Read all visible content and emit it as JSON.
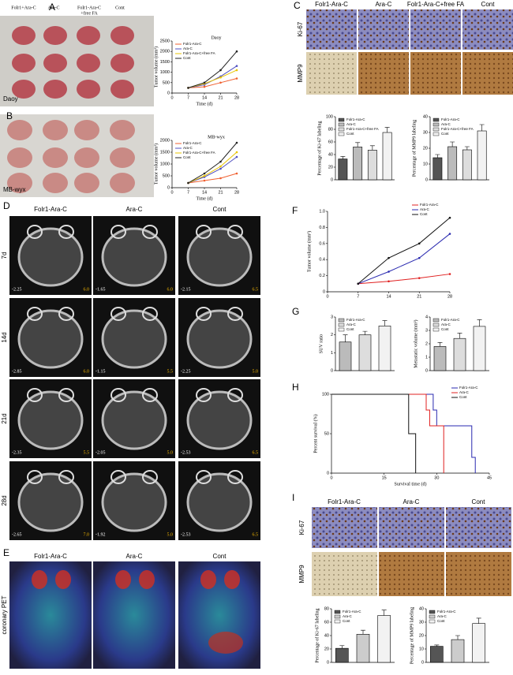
{
  "panel_labels": [
    "A",
    "B",
    "C",
    "D",
    "E",
    "F",
    "G",
    "H",
    "I"
  ],
  "panel_a": {
    "columns": [
      [
        "Folr1+Ara-C"
      ],
      [
        "Ara-C"
      ],
      [
        "Folr1-Ara-C",
        "+free FA"
      ],
      [
        "Cont"
      ]
    ],
    "photo_labels": [
      "Daoy",
      "MB-wyx"
    ]
  },
  "panel_c": {
    "columns": [
      "Folr1-Ara-C",
      "Ara-C",
      "Folr1-Ara-C+free FA",
      "Cont"
    ],
    "rows": [
      "Ki-67",
      "MMP9"
    ]
  },
  "panel_d": {
    "columns": [
      "Folr1-Ara-C",
      "Ara-C",
      "Cont"
    ],
    "rows": [
      {
        "label": "7d",
        "values": [
          [
            "-2.25",
            "6.0"
          ],
          [
            "-1.65",
            "6.0"
          ],
          [
            "-2.15",
            "6.5"
          ]
        ]
      },
      {
        "label": "14d",
        "values": [
          [
            "-2.85",
            "6.0"
          ],
          [
            "-1.15",
            "5.5"
          ],
          [
            "-2.25",
            "5.0"
          ]
        ]
      },
      {
        "label": "21d",
        "values": [
          [
            "-2.35",
            "5.5"
          ],
          [
            "-2.05",
            "5.0"
          ],
          [
            "-2.53",
            "6.5"
          ]
        ]
      },
      {
        "label": "28d",
        "values": [
          [
            "-2.65",
            "7.0"
          ],
          [
            "-1.92",
            "5.0"
          ],
          [
            "-2.53",
            "6.5"
          ]
        ]
      }
    ]
  },
  "panel_e": {
    "columns": [
      "Folr1-Ara-C",
      "Ara-C",
      "Cont"
    ],
    "row_label": "coronary PET"
  },
  "panel_i": {
    "columns": [
      "Folr1-Ara-C",
      "Ara-C",
      "Cont"
    ],
    "rows": [
      "Ki-67",
      "MMP9"
    ]
  },
  "chart_data": [
    {
      "type": "line",
      "title": "Daoy",
      "xlabel": "Time (d)",
      "ylabel": "Tumor volume (mm³)",
      "x": [
        7,
        14,
        21,
        28
      ],
      "xlim": [
        0,
        28
      ],
      "xticks": [
        0,
        7,
        14,
        21,
        28
      ],
      "ylim": [
        0,
        2500
      ],
      "yticks": [
        0,
        500,
        1000,
        1500,
        2000,
        2500
      ],
      "legend": "upper left",
      "series": [
        {
          "name": "Folr1-Ara-C",
          "color": "#f06030",
          "values": [
            250,
            300,
            500,
            700
          ]
        },
        {
          "name": "Ara-C",
          "color": "#5050c0",
          "values": [
            250,
            400,
            800,
            1300
          ]
        },
        {
          "name": "Folr1-Ara-C+free FA",
          "color": "#e8c400",
          "values": [
            250,
            450,
            750,
            1100
          ]
        },
        {
          "name": "Cont",
          "color": "#222222",
          "values": [
            250,
            500,
            1100,
            2000
          ]
        }
      ]
    },
    {
      "type": "line",
      "title": "MB-wyx",
      "xlabel": "Time (d)",
      "ylabel": "Tumor volume (mm³)",
      "x": [
        7,
        14,
        21,
        28
      ],
      "xlim": [
        0,
        28
      ],
      "xticks": [
        0,
        7,
        14,
        21,
        28
      ],
      "ylim": [
        0,
        2000
      ],
      "yticks": [
        0,
        500,
        1000,
        1500,
        2000
      ],
      "legend": "upper left",
      "series": [
        {
          "name": "Folr1-Ara-C",
          "color": "#f06030",
          "values": [
            200,
            300,
            400,
            600
          ]
        },
        {
          "name": "Ara-C",
          "color": "#5050c0",
          "values": [
            200,
            450,
            800,
            1300
          ]
        },
        {
          "name": "Folr1-Ara-C+free FA",
          "color": "#e8c400",
          "values": [
            200,
            500,
            900,
            1500
          ]
        },
        {
          "name": "Cont",
          "color": "#222222",
          "values": [
            200,
            600,
            1100,
            1900
          ]
        }
      ]
    },
    {
      "type": "bar",
      "ylabel": "Percentage of Ki-67 labeling",
      "categories": [
        "Folr1-Ara-C",
        "Ara-C",
        "Folr1-Ara-C+free FA",
        "Cont"
      ],
      "values": [
        33,
        52,
        47,
        75
      ],
      "errors": [
        4,
        7,
        7,
        8
      ],
      "colors": [
        "#555555",
        "#bbbbbb",
        "#dddddd",
        "#f2f2f2"
      ],
      "ylim": [
        0,
        100
      ],
      "yticks": [
        0,
        20,
        40,
        60,
        80,
        100
      ],
      "legend": "upper left"
    },
    {
      "type": "bar",
      "ylabel": "Percentage of MMP9 labeling",
      "categories": [
        "Folr1-Ara-C",
        "Ara-C",
        "Folr1-Ara-C+free FA",
        "Cont"
      ],
      "values": [
        14,
        21,
        19,
        31
      ],
      "errors": [
        2,
        3,
        2,
        4
      ],
      "colors": [
        "#555555",
        "#bbbbbb",
        "#dddddd",
        "#f2f2f2"
      ],
      "ylim": [
        0,
        40
      ],
      "yticks": [
        0,
        10,
        20,
        30,
        40
      ],
      "legend": "upper left"
    },
    {
      "type": "line",
      "ylabel": "Tumor volume (mm³)",
      "x": [
        7,
        14,
        21,
        28
      ],
      "xlim": [
        0,
        28
      ],
      "xticks": [
        0,
        7,
        14,
        21,
        28
      ],
      "ylim": [
        0,
        1
      ],
      "yticks": [
        0,
        0.2,
        0.4,
        0.6,
        0.8,
        {
          "value": 1,
          "label": "1.0"
        }
      ],
      "legend": "upper right",
      "series": [
        {
          "name": "Folr1-Ara-C",
          "color": "#e02020",
          "values": [
            0.1,
            0.13,
            0.17,
            0.22
          ]
        },
        {
          "name": "Ara-C",
          "color": "#2a2ab0",
          "values": [
            0.1,
            0.25,
            0.42,
            0.72
          ]
        },
        {
          "name": "Cont",
          "color": "#111111",
          "values": [
            0.1,
            0.42,
            0.6,
            0.92
          ]
        }
      ]
    },
    {
      "type": "bar",
      "ylabel": "SUV ratio",
      "categories": [
        "Folr1-Ara-C",
        "Ara-C",
        "Cont"
      ],
      "values": [
        1.6,
        2.0,
        2.5
      ],
      "errors": [
        0.4,
        0.2,
        0.3
      ],
      "colors": [
        "#bbbbbb",
        "#dddddd",
        "#f2f2f2"
      ],
      "ylim": [
        0,
        3
      ],
      "yticks": [
        0,
        1,
        2,
        3
      ],
      "legend": "upper left"
    },
    {
      "type": "bar",
      "ylabel": "Metastatic volume (mm³)",
      "categories": [
        "Folr1-Ara-C",
        "Ara-C",
        "Cont"
      ],
      "values": [
        1.8,
        2.4,
        3.3
      ],
      "errors": [
        0.3,
        0.4,
        0.5
      ],
      "colors": [
        "#bbbbbb",
        "#dddddd",
        "#f2f2f2"
      ],
      "ylim": [
        0,
        4
      ],
      "yticks": [
        0,
        1,
        2,
        3,
        4
      ],
      "legend": "upper left"
    },
    {
      "type": "step",
      "xlabel": "Survival time (d)",
      "ylabel": "Percent survival (%)",
      "xlim": [
        0,
        45
      ],
      "xticks": [
        0,
        15,
        30,
        45
      ],
      "ylim": [
        0,
        100
      ],
      "yticks": [
        0,
        50,
        100
      ],
      "legend": "upper right",
      "series": [
        {
          "name": "Folr1-Ara-C",
          "color": "#2a2ab0",
          "x": [
            0,
            29,
            30,
            40,
            41
          ],
          "values": [
            100,
            80,
            60,
            20,
            0
          ]
        },
        {
          "name": "Ara-C",
          "color": "#e02020",
          "x": [
            0,
            27,
            28,
            32
          ],
          "values": [
            100,
            80,
            60,
            0
          ]
        },
        {
          "name": "Cont",
          "color": "#111111",
          "x": [
            0,
            22,
            24
          ],
          "values": [
            100,
            50,
            0
          ]
        }
      ]
    },
    {
      "type": "bar",
      "ylabel": "Percentage of Ki-67 labeling",
      "categories": [
        "Folr1-Ara-C",
        "Ara-C",
        "Cont"
      ],
      "values": [
        21,
        42,
        70
      ],
      "errors": [
        4,
        6,
        8
      ],
      "colors": [
        "#555555",
        "#cccccc",
        "#f2f2f2"
      ],
      "ylim": [
        0,
        80
      ],
      "yticks": [
        0,
        20,
        40,
        60,
        80
      ],
      "legend": "upper left"
    },
    {
      "type": "bar",
      "ylabel": "Percentage of MMP9 labeling",
      "categories": [
        "Folr1-Ara-C",
        "Ara-C",
        "Cont"
      ],
      "values": [
        12,
        17,
        29
      ],
      "errors": [
        1,
        3,
        4
      ],
      "colors": [
        "#555555",
        "#cccccc",
        "#f2f2f2"
      ],
      "ylim": [
        0,
        40
      ],
      "yticks": [
        0,
        10,
        20,
        30,
        40
      ],
      "legend": "upper left"
    }
  ]
}
